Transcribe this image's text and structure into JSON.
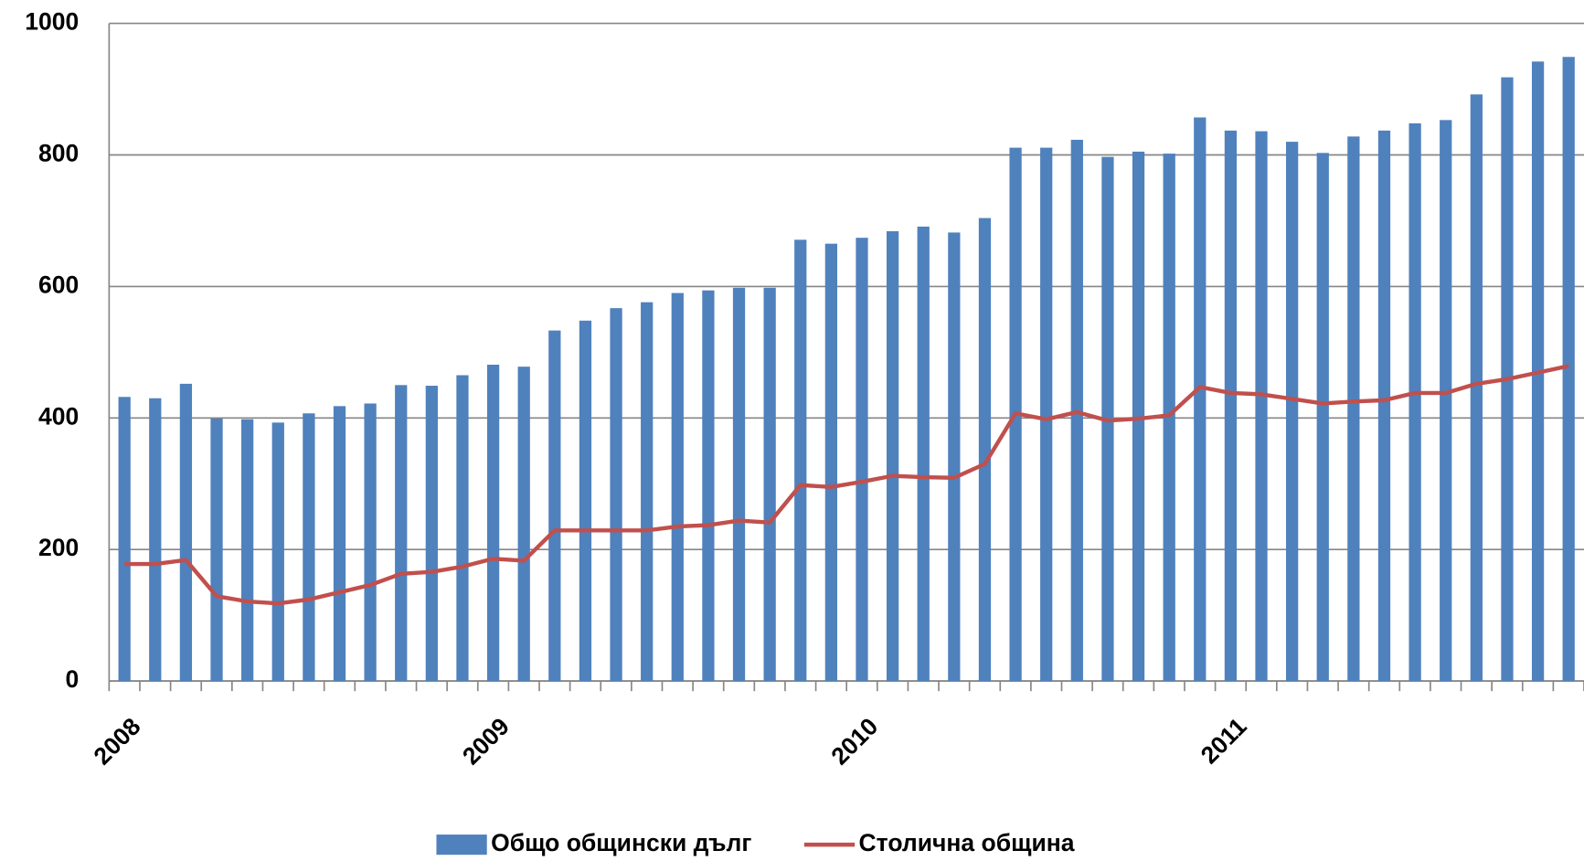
{
  "chart_data": {
    "type": "bar-line",
    "categories": [
      "2008",
      null,
      null,
      null,
      null,
      null,
      null,
      null,
      null,
      null,
      null,
      null,
      "2009",
      null,
      null,
      null,
      null,
      null,
      null,
      null,
      null,
      null,
      null,
      null,
      "2010",
      null,
      null,
      null,
      null,
      null,
      null,
      null,
      null,
      null,
      null,
      null,
      "2011",
      null,
      null,
      null,
      null,
      null,
      null,
      null,
      null,
      null,
      null,
      null
    ],
    "series": [
      {
        "name": "Общо общински дълг",
        "type": "bar",
        "color": "#4f81bd",
        "values": [
          432,
          430,
          452,
          399,
          398,
          393,
          407,
          418,
          422,
          450,
          449,
          465,
          481,
          478,
          533,
          548,
          567,
          576,
          590,
          594,
          598,
          598,
          671,
          665,
          674,
          684,
          691,
          682,
          704,
          811,
          811,
          823,
          797,
          805,
          802,
          857,
          837,
          836,
          820,
          803,
          828,
          837,
          848,
          853,
          892,
          918,
          942,
          949
        ]
      },
      {
        "name": "Столична община",
        "type": "line",
        "color": "#c0504d",
        "values": [
          178,
          178,
          184,
          129,
          121,
          118,
          124,
          135,
          146,
          163,
          166,
          174,
          186,
          183,
          229,
          229,
          229,
          229,
          235,
          237,
          244,
          241,
          298,
          295,
          303,
          312,
          310,
          309,
          330,
          407,
          398,
          409,
          396,
          399,
          404,
          447,
          438,
          436,
          429,
          422,
          425,
          427,
          438,
          438,
          452,
          459,
          469,
          479
        ]
      }
    ],
    "ylim": [
      0,
      1000
    ],
    "yticks": [
      0,
      200,
      400,
      600,
      800,
      1000
    ],
    "grid": true,
    "legend": "bottom"
  }
}
